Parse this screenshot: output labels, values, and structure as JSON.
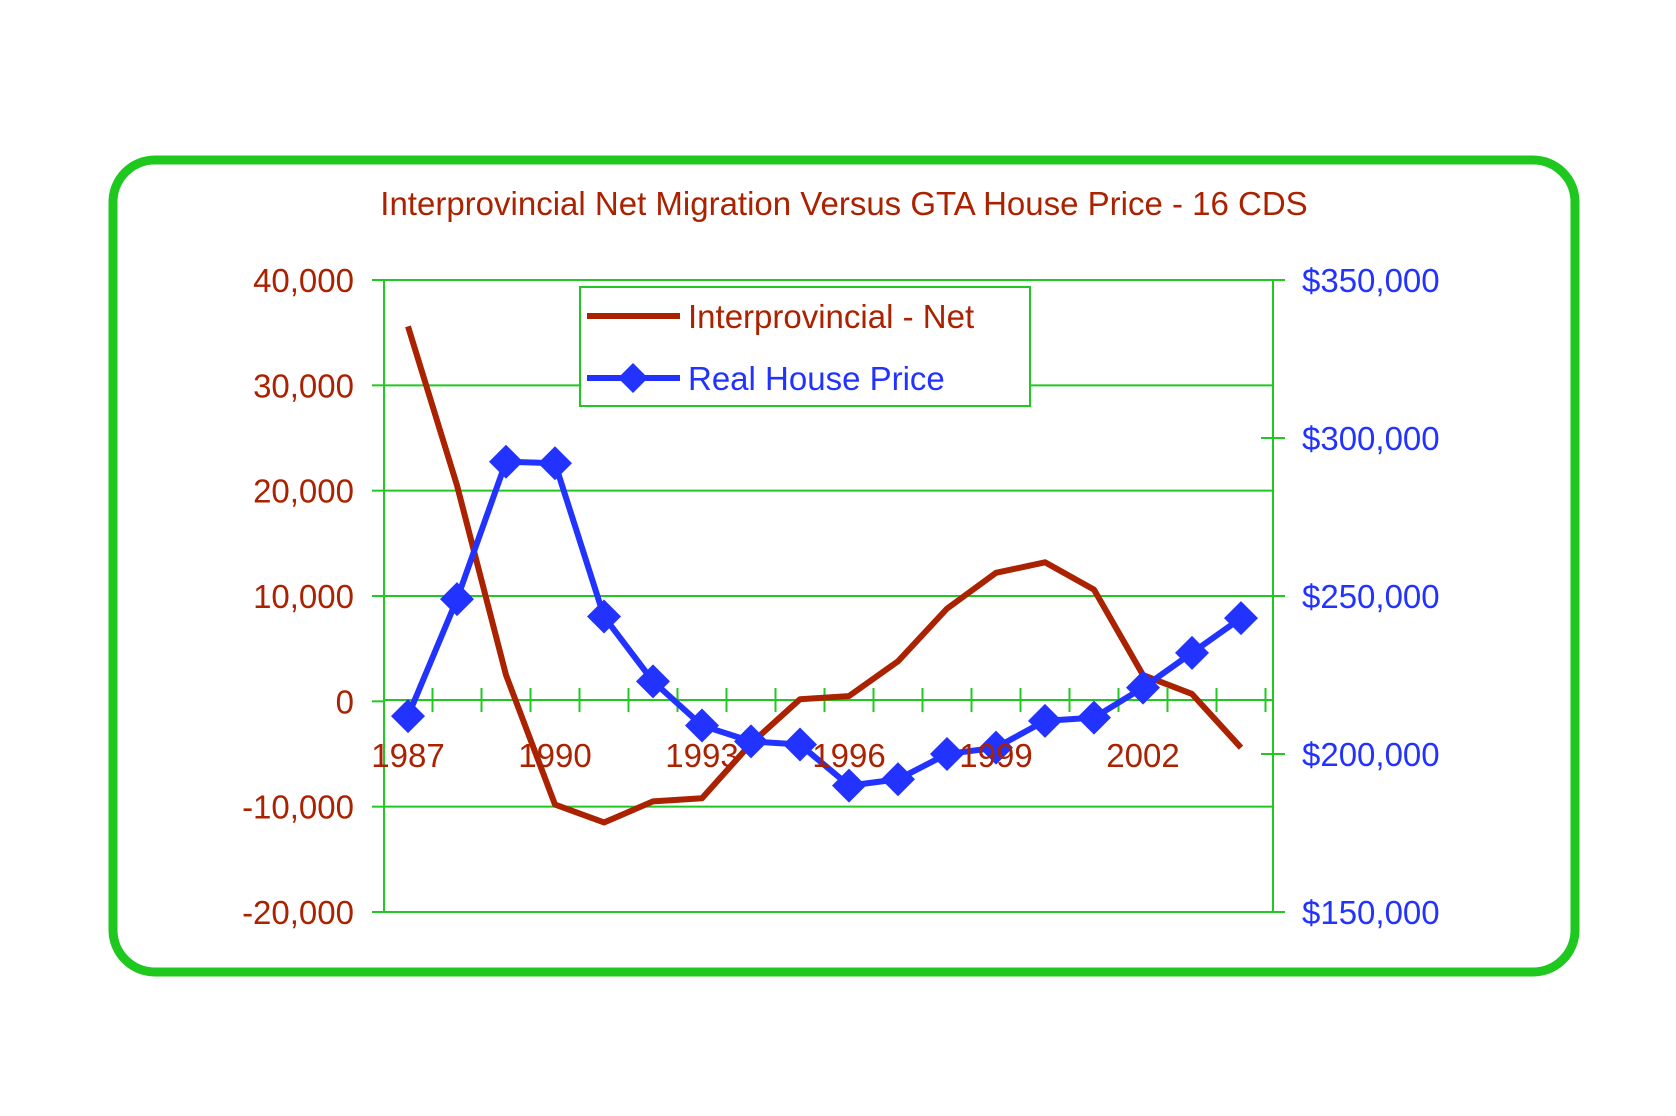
{
  "chart_data": {
    "type": "line",
    "title": "Interprovincial Net Migration Versus GTA House Price - 16 CDS",
    "x": [
      1987,
      1988,
      1989,
      1990,
      1991,
      1992,
      1993,
      1994,
      1995,
      1996,
      1997,
      1998,
      1999,
      2000,
      2001,
      2002,
      2003,
      2004
    ],
    "x_tick_labels": [
      "1987",
      "1990",
      "1993",
      "1996",
      "1999",
      "2002"
    ],
    "x_tick_label_years": [
      1987,
      1990,
      1993,
      1996,
      1999,
      2002
    ],
    "y_left": {
      "range": [
        -20000,
        40000
      ],
      "ticks": [
        40000,
        30000,
        20000,
        10000,
        0,
        -10000,
        -20000
      ],
      "tick_labels": [
        "40,000",
        "30,000",
        "20,000",
        "10,000",
        "0",
        "-10,000",
        "-20,000"
      ]
    },
    "y_right": {
      "range": [
        150000,
        350000
      ],
      "ticks": [
        350000,
        300000,
        250000,
        200000,
        150000
      ],
      "tick_labels": [
        "$350,000",
        "$300,000",
        "$250,000",
        "$200,000",
        "$150,000"
      ]
    },
    "series": [
      {
        "name": "Interprovincial - Net",
        "axis": "left",
        "color": "#aa2200",
        "marker": "none",
        "values": [
          35600,
          20500,
          2500,
          -9800,
          -11500,
          -9500,
          -9200,
          -4000,
          200,
          500,
          3800,
          8800,
          12200,
          13200,
          10600,
          2500,
          700,
          -4400
        ]
      },
      {
        "name": "Real House Price",
        "axis": "right",
        "color": "#2233ff",
        "marker": "diamond",
        "values": [
          212000,
          249000,
          292500,
          292000,
          243500,
          223000,
          209000,
          204000,
          203000,
          190000,
          192000,
          200000,
          202000,
          210500,
          211500,
          221000,
          232000,
          243000
        ]
      }
    ],
    "legend_position": "top-center",
    "grid": true,
    "colors": {
      "frame": "#1ec81e",
      "grid": "#22c822",
      "title": "#aa2200",
      "left_axis_text": "#aa2200",
      "right_axis_text": "#2233ff"
    }
  }
}
